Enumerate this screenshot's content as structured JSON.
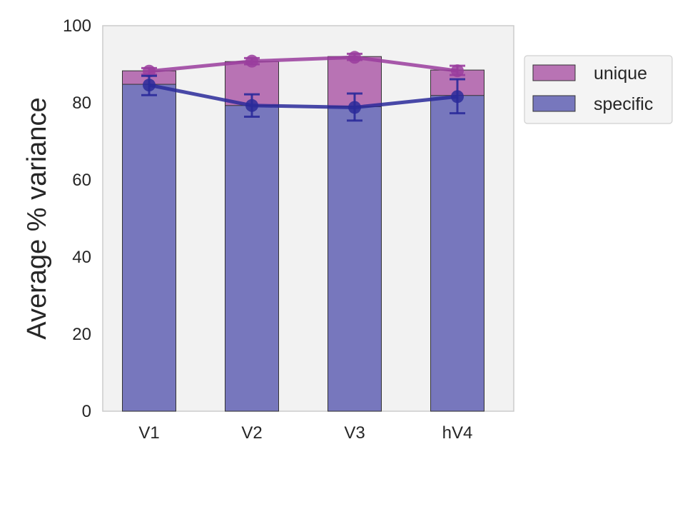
{
  "chart_data": {
    "type": "bar",
    "stacked": true,
    "categories": [
      "V1",
      "V2",
      "V3",
      "hV4"
    ],
    "ylabel": "Average % variance",
    "xlabel": "",
    "ylim": [
      0,
      100
    ],
    "yticks": [
      0,
      20,
      40,
      60,
      80,
      100
    ],
    "grid": false,
    "legend_position": "outside-top-right",
    "series": [
      {
        "name": "specific",
        "color": "#7777bd",
        "line_color": "#2a2a9a",
        "bar_values": [
          84.8,
          79.3,
          79.0,
          81.9
        ],
        "point_values": [
          84.6,
          79.3,
          78.8,
          81.6
        ],
        "error_low": [
          82.0,
          76.4,
          75.4,
          77.3
        ],
        "error_high": [
          87.0,
          82.2,
          82.4,
          86.1
        ]
      },
      {
        "name": "unique",
        "color": "#b873b4",
        "line_color": "#9a3d9e",
        "bar_values": [
          88.3,
          90.7,
          92.0,
          88.5
        ],
        "point_values": [
          88.2,
          90.8,
          91.8,
          88.3
        ],
        "error_low": [
          87.3,
          90.0,
          91.1,
          87.2
        ],
        "error_high": [
          89.0,
          91.6,
          92.7,
          89.6
        ]
      }
    ],
    "legend": [
      "unique",
      "specific"
    ]
  },
  "colors": {
    "plot_background": "#f2f2f2",
    "axis_spine": "#cccccc",
    "bar_edge": "#333333",
    "text": "#262626"
  }
}
